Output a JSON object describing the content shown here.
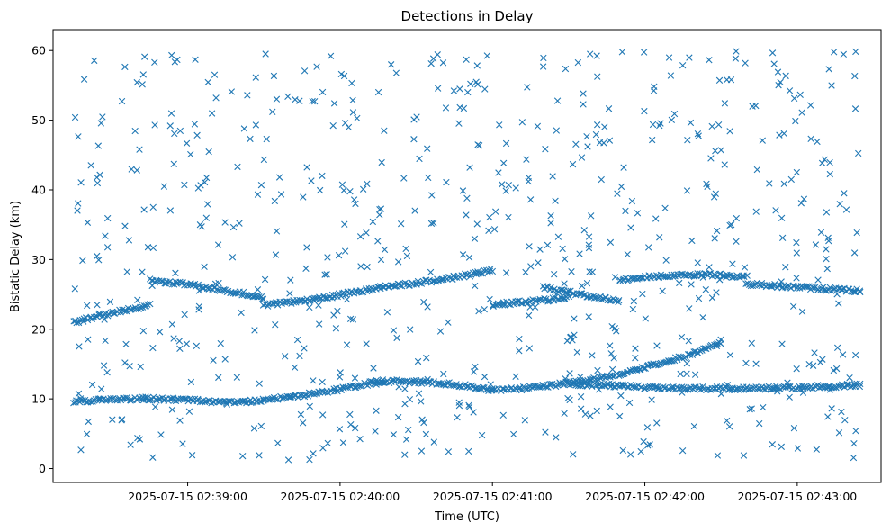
{
  "chart_data": {
    "type": "scatter",
    "title": "Detections in Delay",
    "xlabel": "Time (UTC)",
    "ylabel": "Bistatic Delay (km)",
    "x_type": "time",
    "x_start": "2025-07-15 02:38:15",
    "x_end": "2025-07-15 02:43:25",
    "xlim": [
      "2025-07-15 02:38:07",
      "2025-07-15 02:43:33"
    ],
    "ylim": [
      -2,
      63
    ],
    "x_ticks": [
      "2025-07-15 02:39:00",
      "2025-07-15 02:40:00",
      "2025-07-15 02:41:00",
      "2025-07-15 02:42:00",
      "2025-07-15 02:43:00"
    ],
    "y_ticks": [
      "0",
      "10",
      "20",
      "30",
      "40",
      "50",
      "60"
    ],
    "marker": "x",
    "color": "#1f77b4",
    "grid": false,
    "legend": "none",
    "series": [
      {
        "tracks": [
          {
            "t0": "2025-07-15 02:38:15",
            "t1": "2025-07-15 02:39:15",
            "d0": 9.5,
            "d1": 9.4,
            "mid": 10.0
          },
          {
            "t0": "2025-07-15 02:39:15",
            "t1": "2025-07-15 02:40:15",
            "d0": 9.4,
            "d1": 12.5,
            "mid": 10.5
          },
          {
            "t0": "2025-07-15 02:40:15",
            "t1": "2025-07-15 02:41:00",
            "d0": 12.5,
            "d1": 11.3,
            "mid": 12.3
          },
          {
            "t0": "2025-07-15 02:41:00",
            "t1": "2025-07-15 02:41:30",
            "d0": 11.3,
            "d1": 12.3,
            "mid": 11.6
          },
          {
            "t0": "2025-07-15 02:41:30",
            "t1": "2025-07-15 02:42:30",
            "d0": 12.3,
            "d1": 18.0,
            "mid": 14.5
          },
          {
            "t0": "2025-07-15 02:41:30",
            "t1": "2025-07-15 02:43:25",
            "d0": 12.2,
            "d1": 12.0,
            "mid": 11.5
          },
          {
            "t0": "2025-07-15 02:38:15",
            "t1": "2025-07-15 02:38:45",
            "d0": 21.0,
            "d1": 23.5,
            "mid": 22.3
          },
          {
            "t0": "2025-07-15 02:38:45",
            "t1": "2025-07-15 02:39:30",
            "d0": 27.0,
            "d1": 24.5,
            "mid": 26.0
          },
          {
            "t0": "2025-07-15 02:39:30",
            "t1": "2025-07-15 02:40:15",
            "d0": 23.5,
            "d1": 26.0,
            "mid": 24.5
          },
          {
            "t0": "2025-07-15 02:40:15",
            "t1": "2025-07-15 02:41:00",
            "d0": 26.0,
            "d1": 28.5,
            "mid": 27.0
          },
          {
            "t0": "2025-07-15 02:41:00",
            "t1": "2025-07-15 02:41:30",
            "d0": 23.5,
            "d1": 24.5,
            "mid": 24.0
          },
          {
            "t0": "2025-07-15 02:41:20",
            "t1": "2025-07-15 02:41:50",
            "d0": 26.0,
            "d1": 24.0,
            "mid": 25.0
          },
          {
            "t0": "2025-07-15 02:41:50",
            "t1": "2025-07-15 02:42:40",
            "d0": 27.0,
            "d1": 27.5,
            "mid": 27.8
          },
          {
            "t0": "2025-07-15 02:42:40",
            "t1": "2025-07-15 02:43:25",
            "d0": 26.5,
            "d1": 25.5,
            "mid": 26.0
          }
        ],
        "noise_points": 700,
        "noise_range": [
          1,
          60
        ]
      }
    ]
  }
}
